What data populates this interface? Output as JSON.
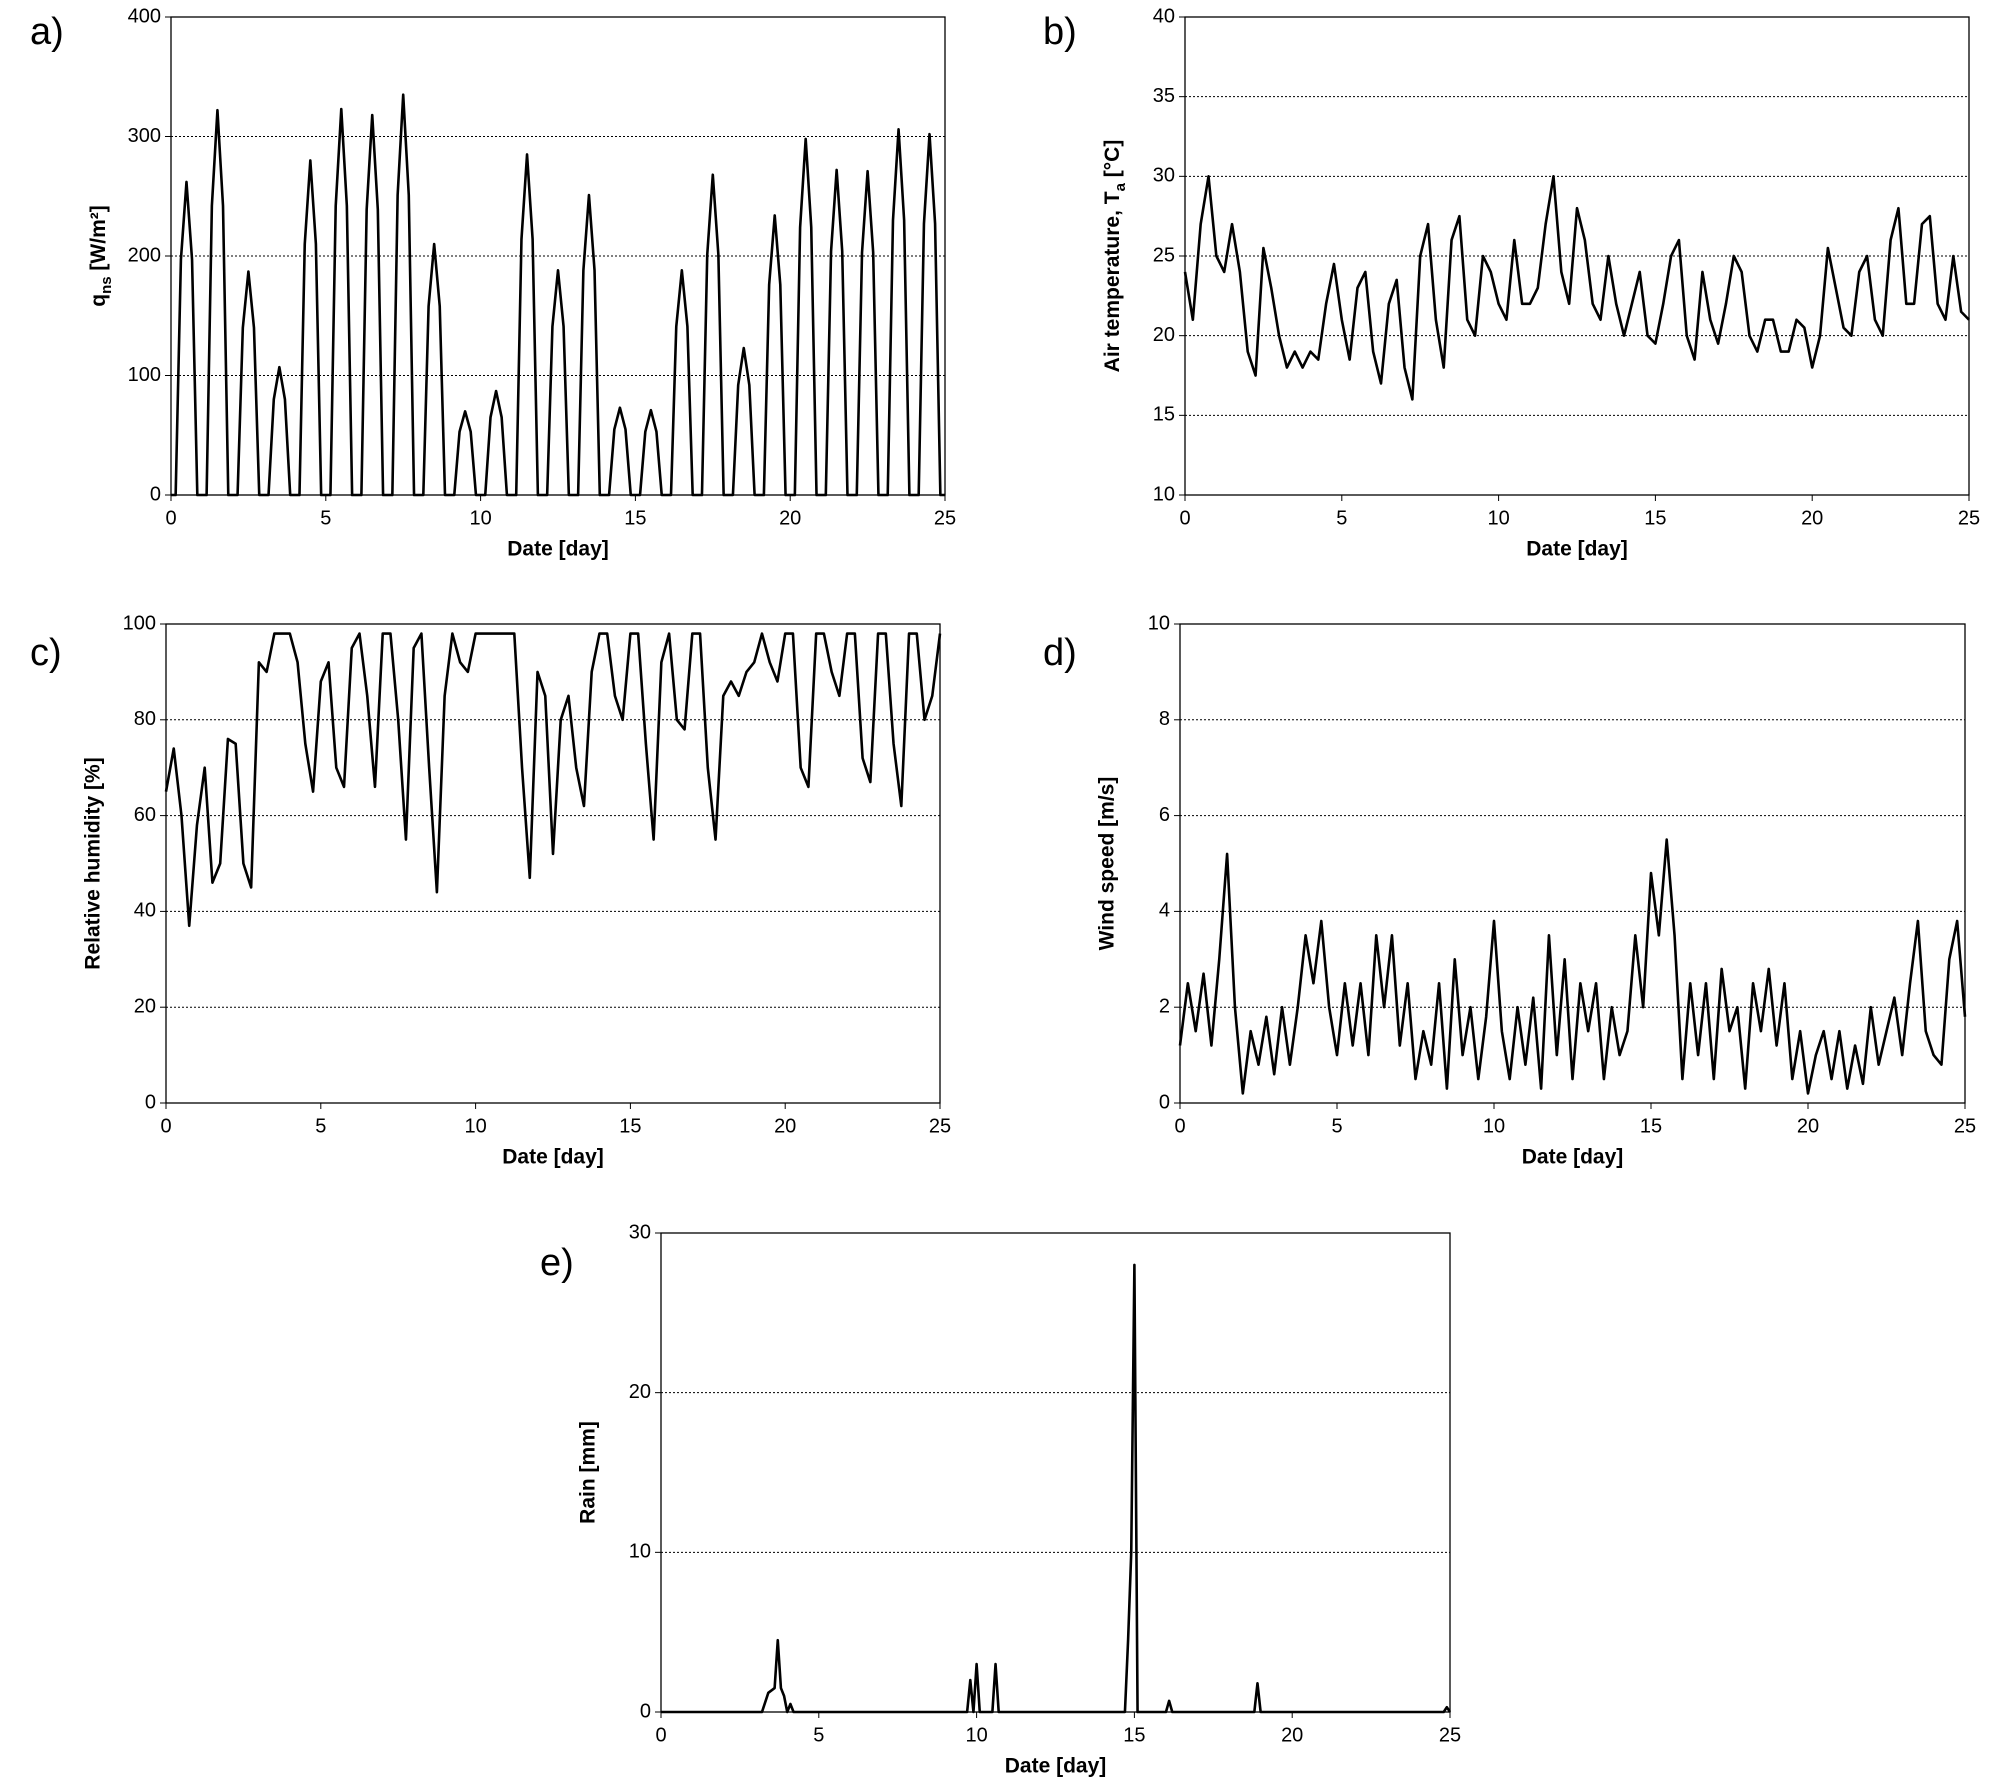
{
  "chart_data": [
    {
      "type": "line",
      "panel": "a)",
      "xlabel": "Date [day]",
      "ylabel": [
        {
          "text": "q"
        },
        {
          "text": "ns",
          "sub": true
        },
        {
          "text": " [W/m²]"
        }
      ],
      "xlim": [
        0,
        25
      ],
      "xticks": [
        0,
        5,
        10,
        15,
        20,
        25
      ],
      "ylim": [
        0,
        400
      ],
      "yticks": [
        0,
        100,
        200,
        300,
        400
      ],
      "grid": true,
      "series": [
        {
          "color": "#000000",
          "x": [
            0,
            0.15,
            0.32,
            0.5,
            0.68,
            0.85,
            1.15,
            1.32,
            1.5,
            1.68,
            1.85,
            2.15,
            2.32,
            2.5,
            2.68,
            2.85,
            3.15,
            3.32,
            3.5,
            3.68,
            3.85,
            4.15,
            4.32,
            4.5,
            4.68,
            4.85,
            5.15,
            5.32,
            5.5,
            5.68,
            5.85,
            6.15,
            6.32,
            6.5,
            6.68,
            6.85,
            7.15,
            7.32,
            7.5,
            7.68,
            7.85,
            8.15,
            8.32,
            8.5,
            8.68,
            8.85,
            9.15,
            9.32,
            9.5,
            9.68,
            9.85,
            10.15,
            10.32,
            10.5,
            10.68,
            10.85,
            11.15,
            11.32,
            11.5,
            11.68,
            11.85,
            12.15,
            12.32,
            12.5,
            12.68,
            12.85,
            13.15,
            13.32,
            13.5,
            13.68,
            13.85,
            14.15,
            14.32,
            14.5,
            14.68,
            14.85,
            15.15,
            15.32,
            15.5,
            15.68,
            15.85,
            16.15,
            16.32,
            16.5,
            16.68,
            16.85,
            17.15,
            17.32,
            17.5,
            17.68,
            17.85,
            18.15,
            18.32,
            18.5,
            18.68,
            18.85,
            19.15,
            19.32,
            19.5,
            19.68,
            19.85,
            20.15,
            20.32,
            20.5,
            20.68,
            20.85,
            21.15,
            21.32,
            21.5,
            21.68,
            21.85,
            22.15,
            22.32,
            22.5,
            22.68,
            22.85,
            23.15,
            23.32,
            23.5,
            23.68,
            23.85,
            24.15,
            24.32,
            24.5,
            24.68,
            24.85,
            25
          ],
          "values": [
            0,
            0,
            197,
            262,
            197,
            0,
            0,
            242,
            322,
            242,
            0,
            0,
            140,
            187,
            140,
            0,
            0,
            80,
            107,
            80,
            0,
            0,
            210,
            280,
            210,
            0,
            0,
            242,
            323,
            242,
            0,
            0,
            239,
            318,
            239,
            0,
            0,
            251,
            335,
            251,
            0,
            0,
            158,
            210,
            158,
            0,
            0,
            53,
            70,
            53,
            0,
            0,
            65,
            87,
            65,
            0,
            0,
            214,
            285,
            214,
            0,
            0,
            141,
            188,
            141,
            0,
            0,
            188,
            251,
            188,
            0,
            0,
            55,
            73,
            55,
            0,
            0,
            53,
            71,
            53,
            0,
            0,
            141,
            188,
            141,
            0,
            0,
            201,
            268,
            201,
            0,
            0,
            92,
            123,
            92,
            0,
            0,
            176,
            234,
            176,
            0,
            0,
            224,
            298,
            224,
            0,
            0,
            204,
            272,
            204,
            0,
            0,
            203,
            271,
            203,
            0,
            0,
            230,
            306,
            230,
            0,
            0,
            227,
            302,
            227,
            0,
            0
          ]
        }
      ]
    },
    {
      "type": "line",
      "panel": "b)",
      "xlabel": "Date [day]",
      "ylabel": [
        {
          "text": "Air temperature, T"
        },
        {
          "text": "a",
          "sub": true
        },
        {
          "text": " [°C]"
        }
      ],
      "xlim": [
        0,
        25
      ],
      "xticks": [
        0,
        5,
        10,
        15,
        20,
        25
      ],
      "ylim": [
        10,
        40
      ],
      "yticks": [
        10,
        15,
        20,
        25,
        30,
        35,
        40
      ],
      "grid": true,
      "series": [
        {
          "color": "#000000",
          "x": [
            0,
            0.25,
            0.5,
            0.75,
            1,
            1.25,
            1.5,
            1.75,
            2,
            2.25,
            2.5,
            2.75,
            3,
            3.25,
            3.5,
            3.75,
            4,
            4.25,
            4.5,
            4.75,
            5,
            5.25,
            5.5,
            5.75,
            6,
            6.25,
            6.5,
            6.75,
            7,
            7.25,
            7.5,
            7.75,
            8,
            8.25,
            8.5,
            8.75,
            9,
            9.25,
            9.5,
            9.75,
            10,
            10.25,
            10.5,
            10.75,
            11,
            11.25,
            11.5,
            11.75,
            12,
            12.25,
            12.5,
            12.75,
            13,
            13.25,
            13.5,
            13.75,
            14,
            14.25,
            14.5,
            14.75,
            15,
            15.25,
            15.5,
            15.75,
            16,
            16.25,
            16.5,
            16.75,
            17,
            17.25,
            17.5,
            17.75,
            18,
            18.25,
            18.5,
            18.75,
            19,
            19.25,
            19.5,
            19.75,
            20,
            20.25,
            20.5,
            20.75,
            21,
            21.25,
            21.5,
            21.75,
            22,
            22.25,
            22.5,
            22.75,
            23,
            23.25,
            23.5,
            23.75,
            24,
            24.25,
            24.5,
            24.75,
            25
          ],
          "values": [
            24,
            21,
            27,
            30,
            25,
            24,
            27,
            24,
            19,
            17.5,
            25.5,
            23,
            20,
            18,
            19,
            18,
            19,
            18.5,
            22,
            24.5,
            21,
            18.5,
            23,
            24,
            19,
            17,
            22,
            23.5,
            18,
            16,
            25,
            27,
            21,
            18,
            26,
            27.5,
            21,
            20,
            25,
            24,
            22,
            21,
            26,
            22,
            22,
            23,
            27,
            30,
            24,
            22,
            28,
            26,
            22,
            21,
            25,
            22,
            20,
            22,
            24,
            20,
            19.5,
            22,
            25,
            26,
            20,
            18.5,
            24,
            21,
            19.5,
            22,
            25,
            24,
            20,
            19,
            21,
            21,
            19,
            19,
            21,
            20.5,
            18,
            20,
            25.5,
            23,
            20.5,
            20,
            24,
            25,
            21,
            20,
            26,
            28,
            22,
            22,
            27,
            27.5,
            22,
            21,
            25,
            21.5,
            21
          ]
        }
      ]
    },
    {
      "type": "line",
      "panel": "c)",
      "xlabel": "Date [day]",
      "ylabel": "Relative humidity [%]",
      "xlim": [
        0,
        25
      ],
      "xticks": [
        0,
        5,
        10,
        15,
        20,
        25
      ],
      "ylim": [
        0,
        100
      ],
      "yticks": [
        0,
        20,
        40,
        60,
        80,
        100
      ],
      "grid": true,
      "series": [
        {
          "color": "#000000",
          "x": [
            0,
            0.25,
            0.5,
            0.75,
            1,
            1.25,
            1.5,
            1.75,
            2,
            2.25,
            2.5,
            2.75,
            3,
            3.25,
            3.5,
            3.75,
            4,
            4.25,
            4.5,
            4.75,
            5,
            5.25,
            5.5,
            5.75,
            6,
            6.25,
            6.5,
            6.75,
            7,
            7.25,
            7.5,
            7.75,
            8,
            8.25,
            8.5,
            8.75,
            9,
            9.25,
            9.5,
            9.75,
            10,
            10.25,
            10.5,
            10.75,
            11,
            11.25,
            11.5,
            11.75,
            12,
            12.25,
            12.5,
            12.75,
            13,
            13.25,
            13.5,
            13.75,
            14,
            14.25,
            14.5,
            14.75,
            15,
            15.25,
            15.5,
            15.75,
            16,
            16.25,
            16.5,
            16.75,
            17,
            17.25,
            17.5,
            17.75,
            18,
            18.25,
            18.5,
            18.75,
            19,
            19.25,
            19.5,
            19.75,
            20,
            20.25,
            20.5,
            20.75,
            21,
            21.25,
            21.5,
            21.75,
            22,
            22.25,
            22.5,
            22.75,
            23,
            23.25,
            23.5,
            23.75,
            24,
            24.25,
            24.5,
            24.75,
            25
          ],
          "values": [
            65,
            74,
            60,
            37,
            58,
            70,
            46,
            50,
            76,
            75,
            50,
            45,
            92,
            90,
            98,
            98,
            98,
            92,
            75,
            65,
            88,
            92,
            70,
            66,
            95,
            98,
            85,
            66,
            98,
            98,
            80,
            55,
            95,
            98,
            70,
            44,
            85,
            98,
            92,
            90,
            98,
            98,
            98,
            98,
            98,
            98,
            70,
            47,
            90,
            85,
            52,
            80,
            85,
            70,
            62,
            90,
            98,
            98,
            85,
            80,
            98,
            98,
            75,
            55,
            92,
            98,
            80,
            78,
            98,
            98,
            70,
            55,
            85,
            88,
            85,
            90,
            92,
            98,
            92,
            88,
            98,
            98,
            70,
            66,
            98,
            98,
            90,
            85,
            98,
            98,
            72,
            67,
            98,
            98,
            75,
            62,
            98,
            98,
            80,
            85,
            98
          ]
        }
      ]
    },
    {
      "type": "line",
      "panel": "d)",
      "xlabel": "Date [day]",
      "ylabel": "Wind speed [m/s]",
      "xlim": [
        0,
        25
      ],
      "xticks": [
        0,
        5,
        10,
        15,
        20,
        25
      ],
      "ylim": [
        0,
        10
      ],
      "yticks": [
        0,
        2,
        4,
        6,
        8,
        10
      ],
      "grid": true,
      "series": [
        {
          "color": "#000000",
          "x": [
            0,
            0.25,
            0.5,
            0.75,
            1,
            1.25,
            1.5,
            1.75,
            2,
            2.25,
            2.5,
            2.75,
            3,
            3.25,
            3.5,
            3.75,
            4,
            4.25,
            4.5,
            4.75,
            5,
            5.25,
            5.5,
            5.75,
            6,
            6.25,
            6.5,
            6.75,
            7,
            7.25,
            7.5,
            7.75,
            8,
            8.25,
            8.5,
            8.75,
            9,
            9.25,
            9.5,
            9.75,
            10,
            10.25,
            10.5,
            10.75,
            11,
            11.25,
            11.5,
            11.75,
            12,
            12.25,
            12.5,
            12.75,
            13,
            13.25,
            13.5,
            13.75,
            14,
            14.25,
            14.5,
            14.75,
            15,
            15.25,
            15.5,
            15.75,
            16,
            16.25,
            16.5,
            16.75,
            17,
            17.25,
            17.5,
            17.75,
            18,
            18.25,
            18.5,
            18.75,
            19,
            19.25,
            19.5,
            19.75,
            20,
            20.25,
            20.5,
            20.75,
            21,
            21.25,
            21.5,
            21.75,
            22,
            22.25,
            22.5,
            22.75,
            23,
            23.25,
            23.5,
            23.75,
            24,
            24.25,
            24.5,
            24.75,
            25
          ],
          "values": [
            1.2,
            2.5,
            1.5,
            2.7,
            1.2,
            3.0,
            5.2,
            2.0,
            0.2,
            1.5,
            0.8,
            1.8,
            0.6,
            2.0,
            0.8,
            2.0,
            3.5,
            2.5,
            3.8,
            2.0,
            1.0,
            2.5,
            1.2,
            2.5,
            1.0,
            3.5,
            2.0,
            3.5,
            1.2,
            2.5,
            0.5,
            1.5,
            0.8,
            2.5,
            0.3,
            3.0,
            1.0,
            2.0,
            0.5,
            1.8,
            3.8,
            1.5,
            0.5,
            2.0,
            0.8,
            2.2,
            0.3,
            3.5,
            1.0,
            3.0,
            0.5,
            2.5,
            1.5,
            2.5,
            0.5,
            2.0,
            1.0,
            1.5,
            3.5,
            2.0,
            4.8,
            3.5,
            5.5,
            3.5,
            0.5,
            2.5,
            1.0,
            2.5,
            0.5,
            2.8,
            1.5,
            2.0,
            0.3,
            2.5,
            1.5,
            2.8,
            1.2,
            2.5,
            0.5,
            1.5,
            0.2,
            1.0,
            1.5,
            0.5,
            1.5,
            0.3,
            1.2,
            0.4,
            2.0,
            0.8,
            1.5,
            2.2,
            1.0,
            2.5,
            3.8,
            1.5,
            1.0,
            0.8,
            3.0,
            3.8,
            1.8
          ]
        }
      ]
    },
    {
      "type": "line",
      "panel": "e)",
      "xlabel": "Date [day]",
      "ylabel": "Rain [mm]",
      "xlim": [
        0,
        25
      ],
      "xticks": [
        0,
        5,
        10,
        15,
        20,
        25
      ],
      "ylim": [
        0,
        30
      ],
      "yticks": [
        0,
        10,
        20,
        30
      ],
      "grid": true,
      "series": [
        {
          "color": "#000000",
          "x": [
            0,
            3.2,
            3.4,
            3.6,
            3.7,
            3.8,
            3.9,
            4.0,
            4.1,
            4.2,
            9.7,
            9.8,
            9.9,
            10.0,
            10.1,
            10.5,
            10.6,
            10.7,
            14.7,
            14.8,
            14.9,
            15.0,
            15.1,
            16.0,
            16.1,
            16.2,
            18.8,
            18.9,
            19.0,
            24.8,
            24.9,
            25
          ],
          "values": [
            0,
            0,
            1.2,
            1.5,
            4.5,
            1.5,
            1.0,
            0,
            0.5,
            0,
            0,
            2.0,
            0,
            3.0,
            0,
            0,
            3.0,
            0,
            0,
            4.5,
            10,
            28,
            0,
            0,
            0.7,
            0,
            0,
            1.8,
            0,
            0,
            0.3,
            0
          ]
        }
      ]
    }
  ]
}
